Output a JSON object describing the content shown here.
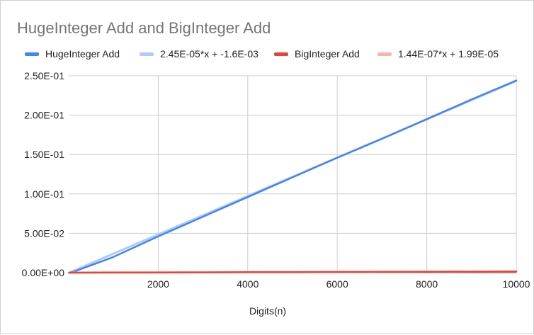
{
  "chart_data": {
    "type": "line",
    "title": "HugeInteger Add and BigInteger Add",
    "xlabel": "Digits(n)",
    "ylabel": "",
    "xlim": [
      0,
      10000
    ],
    "ylim": [
      0,
      0.25
    ],
    "x_ticks": [
      2000,
      4000,
      6000,
      8000,
      10000
    ],
    "x_tick_labels": [
      "2000",
      "4000",
      "6000",
      "8000",
      "10000"
    ],
    "y_ticks": [
      0,
      0.05,
      0.1,
      0.15,
      0.2,
      0.25
    ],
    "y_tick_labels": [
      "0.00E+00",
      "5.00E-02",
      "1.00E-01",
      "1.50E-01",
      "2.00E-01",
      "2.50E-01"
    ],
    "grid": true,
    "legend_position": "top",
    "series": [
      {
        "name": "HugeInteger Add",
        "color": "#4285f4",
        "kind": "data",
        "x": [
          10,
          100,
          1000,
          2000,
          3000,
          4000,
          5000,
          6000,
          7000,
          8000,
          9000,
          10000
        ],
        "y": [
          0.0001,
          0.001,
          0.02,
          0.046,
          0.071,
          0.096,
          0.121,
          0.146,
          0.17,
          0.195,
          0.22,
          0.244
        ]
      },
      {
        "name": "2.45E-05*x + -1.6E-03",
        "color": "#aecbfa",
        "kind": "trendline",
        "slope": 2.45e-05,
        "intercept": -0.0016,
        "x": [
          10,
          10000
        ]
      },
      {
        "name": "BigInteger Add",
        "color": "#ea4335",
        "kind": "data",
        "x": [
          10,
          100,
          1000,
          2000,
          3000,
          4000,
          5000,
          6000,
          7000,
          8000,
          9000,
          10000
        ],
        "y": [
          1e-05,
          3e-05,
          0.0002,
          0.0003,
          0.0004,
          0.0006,
          0.0007,
          0.0009,
          0.001,
          0.0012,
          0.0013,
          0.0014
        ]
      },
      {
        "name": "1.44E-07*x + 1.99E-05",
        "color": "#f4b6b0",
        "kind": "trendline",
        "slope": 1.44e-07,
        "intercept": 1.99e-05,
        "x": [
          10,
          10000
        ]
      }
    ]
  }
}
